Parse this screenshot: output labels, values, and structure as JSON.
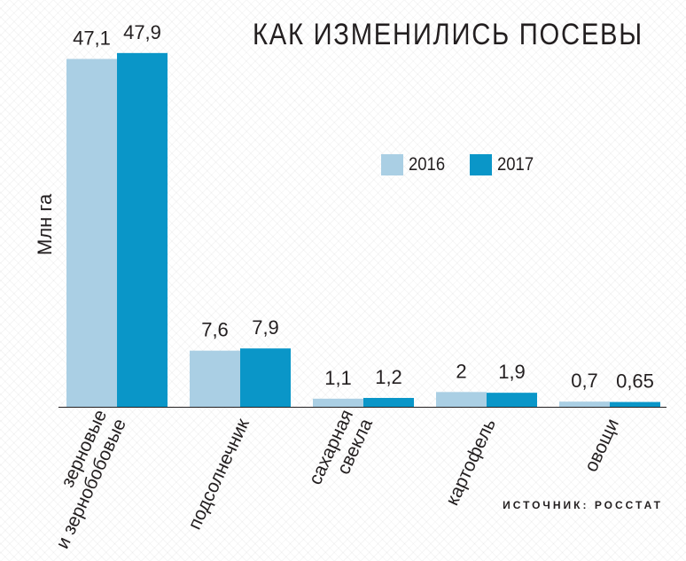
{
  "title": "КАК ИЗМЕНИЛИСЬ ПОСЕВЫ",
  "source": "ИСТОЧНИК: РОССТАТ",
  "legend": {
    "label_2016": "2016",
    "label_2017": "2017"
  },
  "colors": {
    "series_2016": "#aacfe4",
    "series_2017": "#0a96c8",
    "axis": "#231f20"
  },
  "chart_data": {
    "type": "bar",
    "title": "КАК ИЗМЕНИЛИСЬ ПОСЕВЫ",
    "xlabel": "",
    "ylabel": "Млн га",
    "ylim": [
      0,
      48
    ],
    "grid": false,
    "legend_position": "top-right",
    "categories": [
      [
        "зерновые",
        "и зернобобовые"
      ],
      [
        "подсолнечник"
      ],
      [
        "сахарная",
        "свекла"
      ],
      [
        "картофель"
      ],
      [
        "овощи"
      ]
    ],
    "series": [
      {
        "name": "2016",
        "values": [
          47.1,
          7.6,
          1.1,
          2,
          0.7
        ],
        "labels": [
          "47,1",
          "7,6",
          "1,1",
          "2",
          "0,7"
        ]
      },
      {
        "name": "2017",
        "values": [
          47.9,
          7.9,
          1.2,
          1.9,
          0.65
        ],
        "labels": [
          "47,9",
          "7,9",
          "1,2",
          "1,9",
          "0,65"
        ]
      }
    ]
  }
}
